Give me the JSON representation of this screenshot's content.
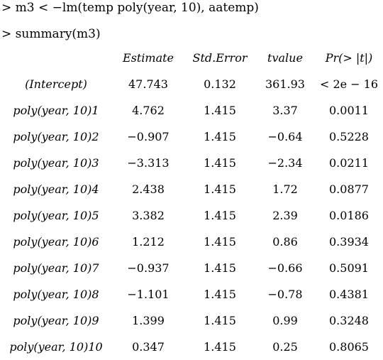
{
  "commands": [
    "> m3 < −lm(temp poly(year, 10), aatemp)",
    "> summary(m3)"
  ],
  "table": {
    "headers": [
      "",
      "Estimate",
      "Std.Error",
      "tvalue",
      "Pr(> |t|)"
    ],
    "rows": [
      [
        "(Intercept)",
        "47.743",
        "0.132",
        "361.93",
        "< 2e − 16"
      ],
      [
        "poly(year, 10)1",
        "4.762",
        "1.415",
        "3.37",
        "0.0011"
      ],
      [
        "poly(year, 10)2",
        "−0.907",
        "1.415",
        "−0.64",
        "0.5228"
      ],
      [
        "poly(year, 10)3",
        "−3.313",
        "1.415",
        "−2.34",
        "0.0211"
      ],
      [
        "poly(year, 10)4",
        "2.438",
        "1.415",
        "1.72",
        "0.0877"
      ],
      [
        "poly(year, 10)5",
        "3.382",
        "1.415",
        "2.39",
        "0.0186"
      ],
      [
        "poly(year, 10)6",
        "1.212",
        "1.415",
        "0.86",
        "0.3934"
      ],
      [
        "poly(year, 10)7",
        "−0.937",
        "1.415",
        "−0.66",
        "0.5091"
      ],
      [
        "poly(year, 10)8",
        "−1.101",
        "1.415",
        "−0.78",
        "0.4381"
      ],
      [
        "poly(year, 10)9",
        "1.399",
        "1.415",
        "0.99",
        "0.3248"
      ],
      [
        "poly(year, 10)10",
        "0.347",
        "1.415",
        "0.25",
        "0.8065"
      ]
    ]
  }
}
